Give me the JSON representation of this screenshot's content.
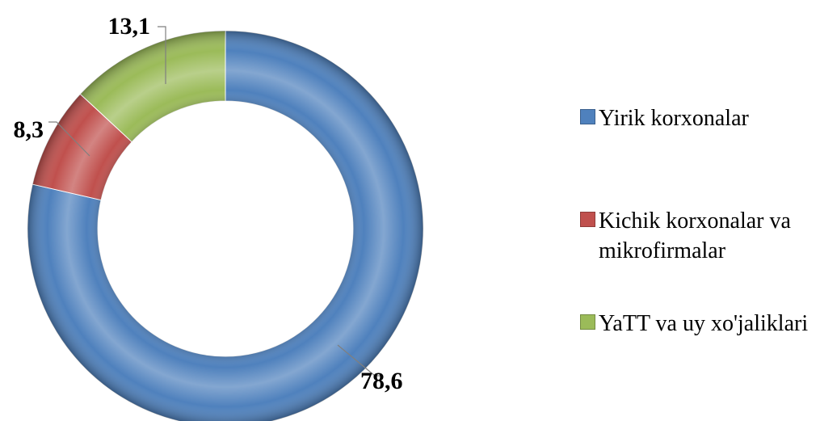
{
  "chart_data": {
    "type": "doughnut",
    "title": "",
    "series": [
      {
        "name": "Yirik korxonalar",
        "value": 78.6,
        "label": "78,6",
        "color": "#4F81BD"
      },
      {
        "name": "Kichik korxonalar va mikrofirmalar",
        "value": 8.3,
        "label": "8,3",
        "color": "#C0504D"
      },
      {
        "name": "YaTT va uy xo'jaliklari",
        "value": 13.1,
        "label": "13,1",
        "color": "#9BBB59"
      }
    ],
    "legend_position": "right"
  }
}
